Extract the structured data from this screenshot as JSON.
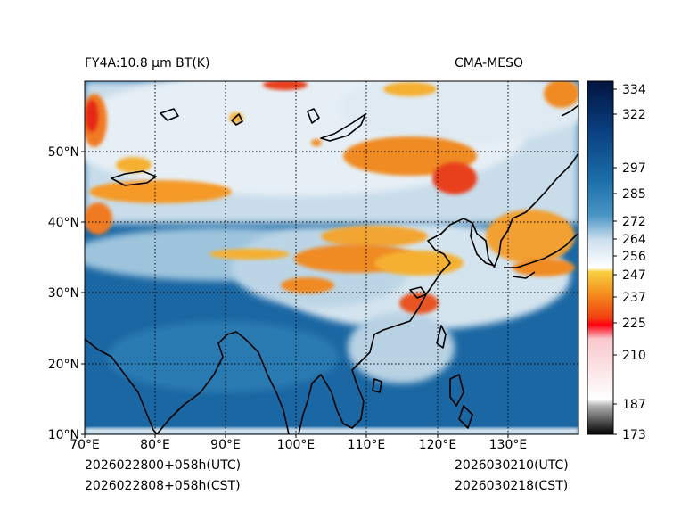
{
  "header": {
    "title_left": "FY4A:10.8 μm BT(K)",
    "title_right": "CMA-MESO"
  },
  "footer": {
    "init_utc": "2026022800+058h(UTC)",
    "init_cst": "2026022808+058h(CST)",
    "valid_utc": "2026030210(UTC)",
    "valid_cst": "2026030218(CST)"
  },
  "map": {
    "lon_range": [
      70,
      140
    ],
    "lat_range": [
      10,
      60
    ],
    "lon_ticks": [
      {
        "value": 70,
        "label": "70°E"
      },
      {
        "value": 80,
        "label": "80°E"
      },
      {
        "value": 90,
        "label": "90°E"
      },
      {
        "value": 100,
        "label": "100°E"
      },
      {
        "value": 110,
        "label": "110°E"
      },
      {
        "value": 120,
        "label": "120°E"
      },
      {
        "value": 130,
        "label": "130°E"
      }
    ],
    "lat_ticks": [
      {
        "value": 10,
        "label": "10°N"
      },
      {
        "value": 20,
        "label": "20°N"
      },
      {
        "value": 30,
        "label": "30°N"
      },
      {
        "value": 40,
        "label": "40°N"
      },
      {
        "value": 50,
        "label": "50°N"
      }
    ]
  },
  "colorbar": {
    "range": [
      173,
      336
    ],
    "ticks": [
      {
        "value": 334,
        "label": "334"
      },
      {
        "value": 322,
        "label": "322"
      },
      {
        "value": 297,
        "label": "297"
      },
      {
        "value": 285,
        "label": "285"
      },
      {
        "value": 272,
        "label": "272"
      },
      {
        "value": 264,
        "label": "264"
      },
      {
        "value": 256,
        "label": "256"
      },
      {
        "value": 247,
        "label": "247"
      },
      {
        "value": 237,
        "label": "237"
      },
      {
        "value": 225,
        "label": "225"
      },
      {
        "value": 210,
        "label": "210"
      },
      {
        "value": 187,
        "label": "187"
      },
      {
        "value": 173,
        "label": "173"
      }
    ],
    "colors": {
      "warm_dark": "#001a4d",
      "ocean_blue": "#1a5f96",
      "land_blue": "#2f7fb5",
      "cloud_light": "#d9e8f2",
      "cloud_white": "#f4f7fa",
      "yellow": "#f5c040",
      "orange": "#f08020",
      "red": "#e8101a",
      "pink": "#f8c0c8",
      "gray": "#909090",
      "black": "#000000"
    }
  }
}
